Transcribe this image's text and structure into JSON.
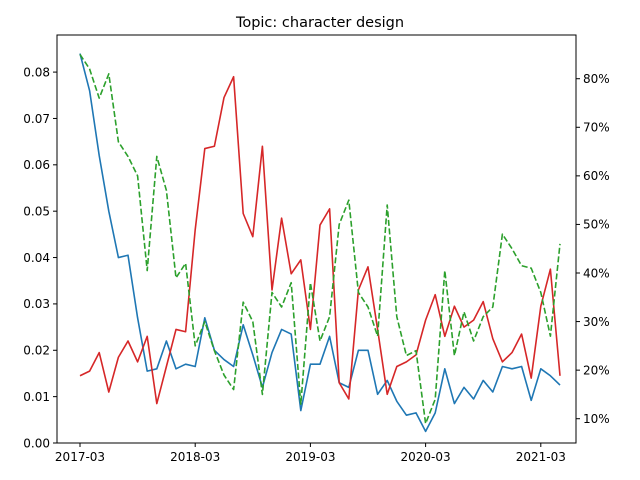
{
  "chart_data": {
    "type": "line",
    "title": "Topic: character design",
    "xlabel": "",
    "ylabel": "",
    "x": [
      "2017-03",
      "2017-04",
      "2017-05",
      "2017-06",
      "2017-07",
      "2017-08",
      "2017-09",
      "2017-10",
      "2017-11",
      "2017-12",
      "2018-01",
      "2018-02",
      "2018-03",
      "2018-04",
      "2018-05",
      "2018-06",
      "2018-07",
      "2018-08",
      "2018-09",
      "2018-10",
      "2018-11",
      "2018-12",
      "2019-01",
      "2019-02",
      "2019-03",
      "2019-04",
      "2019-05",
      "2019-06",
      "2019-07",
      "2019-08",
      "2019-09",
      "2019-10",
      "2019-11",
      "2019-12",
      "2020-01",
      "2020-02",
      "2020-03",
      "2020-04",
      "2020-05",
      "2020-06",
      "2020-07",
      "2020-08",
      "2020-09",
      "2020-10",
      "2020-11",
      "2020-12",
      "2021-01",
      "2021-02",
      "2021-03",
      "2021-04",
      "2021-05"
    ],
    "x_ticks": [
      "2017-03",
      "2018-03",
      "2019-03",
      "2020-03",
      "2021-03"
    ],
    "left_axis": {
      "ylim": [
        0,
        0.088
      ],
      "ticks": [
        0.0,
        0.01,
        0.02,
        0.03,
        0.04,
        0.05,
        0.06,
        0.07,
        0.08
      ],
      "tick_labels": [
        "0.00",
        "0.01",
        "0.02",
        "0.03",
        "0.04",
        "0.05",
        "0.06",
        "0.07",
        "0.08"
      ]
    },
    "right_axis": {
      "ylim": [
        5,
        89
      ],
      "ticks": [
        10,
        20,
        30,
        40,
        50,
        60,
        70,
        80
      ],
      "tick_labels": [
        "10%",
        "20%",
        "30%",
        "40%",
        "50%",
        "60%",
        "70%",
        "80%"
      ]
    },
    "series": [
      {
        "axis": "left",
        "color": "#1f77b4",
        "style": "solid",
        "values": [
          0.084,
          0.076,
          0.062,
          0.05,
          0.04,
          0.0405,
          0.027,
          0.0155,
          0.016,
          0.022,
          0.016,
          0.017,
          0.0165,
          0.027,
          0.02,
          0.018,
          0.0165,
          0.0255,
          0.019,
          0.012,
          0.0195,
          0.0245,
          0.0235,
          0.007,
          0.017,
          0.017,
          0.023,
          0.013,
          0.012,
          0.02,
          0.02,
          0.0105,
          0.0135,
          0.009,
          0.006,
          0.0065,
          0.0025,
          0.0065,
          0.016,
          0.0085,
          0.012,
          0.0095,
          0.0135,
          0.011,
          0.0165,
          0.016,
          0.0165,
          0.0092,
          0.016,
          0.0145,
          0.0125
        ]
      },
      {
        "axis": "left",
        "color": "#d62728",
        "style": "solid",
        "values": [
          0.0145,
          0.0155,
          0.0195,
          0.011,
          0.0185,
          0.022,
          0.0175,
          0.023,
          0.0085,
          0.0165,
          0.0245,
          0.024,
          0.046,
          0.0635,
          0.064,
          0.0745,
          0.079,
          0.0495,
          0.0445,
          0.064,
          0.033,
          0.0485,
          0.0365,
          0.0395,
          0.0245,
          0.047,
          0.0505,
          0.013,
          0.0095,
          0.033,
          0.038,
          0.0245,
          0.0105,
          0.0165,
          0.0175,
          0.019,
          0.0265,
          0.032,
          0.023,
          0.0295,
          0.025,
          0.0265,
          0.0305,
          0.0225,
          0.0175,
          0.0195,
          0.0235,
          0.014,
          0.0295,
          0.0375,
          0.0145
        ]
      },
      {
        "axis": "right",
        "color": "#2ca02c",
        "style": "dashed",
        "values": [
          85,
          82,
          76,
          81,
          67,
          64,
          60,
          40.5,
          64,
          57,
          39,
          42,
          25,
          30,
          24,
          19,
          16,
          34,
          30,
          15,
          36,
          33,
          38,
          13,
          38,
          26,
          31,
          50,
          55,
          36,
          33,
          27,
          54,
          31,
          23,
          24,
          9,
          14,
          40.5,
          23,
          32,
          26,
          31,
          33,
          48,
          45,
          41.5,
          41,
          36,
          27,
          46
        ]
      }
    ]
  }
}
